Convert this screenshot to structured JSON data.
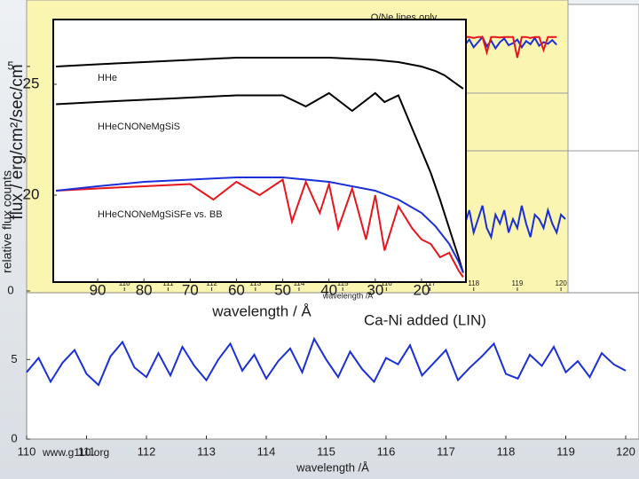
{
  "chart_data": [
    {
      "type": "line",
      "title": "Ca-Ni added  (LIN)",
      "xlabel": "wavelength /Å",
      "xlim": [
        110,
        120
      ],
      "xticks": [
        110,
        111,
        112,
        113,
        114,
        115,
        116,
        117,
        118,
        119,
        120
      ],
      "ylim": [
        0,
        9.2
      ],
      "yticks": [
        0,
        5
      ],
      "x": [
        110,
        110.2,
        110.4,
        110.6,
        110.8,
        111,
        111.2,
        111.4,
        111.6,
        111.8,
        112,
        112.2,
        112.4,
        112.6,
        112.8,
        113,
        113.2,
        113.4,
        113.6,
        113.8,
        114,
        114.2,
        114.4,
        114.6,
        114.8,
        115,
        115.2,
        115.4,
        115.6,
        115.8,
        116,
        116.2,
        116.4,
        116.6,
        116.8,
        117,
        117.2,
        117.4,
        117.6,
        117.8,
        118,
        118.2,
        118.4,
        118.6,
        118.8,
        119,
        119.2,
        119.4,
        119.6,
        119.8,
        120
      ],
      "series": [
        {
          "color": "#1a2fd8",
          "values": [
            4.2,
            5.1,
            3.6,
            4.8,
            5.6,
            4.1,
            3.4,
            5.2,
            6.1,
            4.5,
            3.9,
            5.4,
            4.0,
            5.8,
            4.6,
            3.7,
            5.0,
            6.0,
            4.3,
            5.3,
            3.8,
            4.9,
            5.7,
            4.2,
            6.3,
            5.0,
            3.9,
            5.5,
            4.4,
            3.6,
            5.1,
            4.7,
            5.9,
            4.0,
            4.8,
            5.6,
            3.7,
            4.5,
            5.2,
            6.0,
            4.1,
            3.8,
            5.3,
            4.6,
            5.8,
            4.2,
            4.9,
            3.9,
            5.4,
            4.7,
            4.3
          ]
        }
      ]
    },
    {
      "type": "line",
      "xlabel": "wavelength /Å",
      "ylabel": "relative flux counts",
      "xlim": [
        107.76,
        120.16
      ],
      "xticks": [
        110,
        111,
        112,
        113,
        114,
        115,
        116,
        117,
        118,
        119,
        120
      ],
      "ylim": [
        0,
        6.48
      ],
      "yticks": [
        0,
        5
      ],
      "x": [
        117.8,
        117.9,
        118,
        118.1,
        118.2,
        118.3,
        118.4,
        118.5,
        118.6,
        118.7,
        118.8,
        118.9,
        119,
        119.1,
        119.2,
        119.3,
        119.4,
        119.5,
        119.6,
        119.7,
        119.8,
        119.9,
        120,
        120.1
      ],
      "series": [
        {
          "color": "#1a2fd8",
          "values": [
            1.5,
            1.8,
            1.3,
            1.6,
            1.9,
            1.4,
            1.2,
            1.7,
            1.5,
            1.8,
            1.3,
            1.6,
            1.4,
            1.9,
            1.5,
            1.2,
            1.7,
            1.6,
            1.4,
            1.8,
            1.5,
            1.3,
            1.7,
            1.6
          ]
        }
      ]
    },
    {
      "type": "line",
      "title": "O/Ne lines only",
      "xlim": [
        107.76,
        120.16
      ],
      "ylim": [
        0,
        1.2
      ],
      "x": [
        117.8,
        117.9,
        118,
        118.1,
        118.2,
        118.3,
        118.4,
        118.5,
        118.6,
        118.7,
        118.8,
        118.9,
        119,
        119.1,
        119.2,
        119.3,
        119.4,
        119.5,
        119.6,
        119.7,
        119.8,
        119.9
      ],
      "series": [
        {
          "color": "#1a2fd8",
          "values": [
            0.85,
            0.95,
            0.8,
            0.9,
            1.0,
            0.82,
            0.93,
            0.78,
            0.9,
            0.97,
            0.84,
            0.88,
            0.95,
            0.8,
            0.92,
            0.86,
            0.98,
            0.83,
            0.9,
            0.87,
            0.94,
            0.85
          ]
        },
        {
          "color": "#e8151b",
          "values": [
            1.0,
            1.0,
            0.98,
            1.0,
            1.0,
            0.7,
            1.0,
            1.0,
            0.99,
            1.0,
            1.0,
            1.0,
            0.6,
            1.0,
            1.0,
            0.98,
            1.0,
            1.0,
            0.75,
            1.0,
            1.0,
            1.0
          ]
        }
      ]
    },
    {
      "type": "line",
      "xlabel": "wavelength / Å",
      "ylabel": "flux / erg/cm²/sec/cm",
      "xlim": [
        99.6,
        10.4
      ],
      "xticks": [
        90,
        80,
        70,
        60,
        50,
        40,
        30,
        20
      ],
      "ylim": [
        16.08,
        27.8
      ],
      "yticks": [
        20,
        25
      ],
      "series": [
        {
          "name": "HHe",
          "color": "#000000",
          "x": [
            99,
            90,
            80,
            70,
            60,
            50,
            40,
            30,
            25,
            20,
            17,
            15,
            13,
            11
          ],
          "values": [
            25.8,
            25.9,
            26.0,
            26.1,
            26.2,
            26.2,
            26.2,
            26.1,
            26.0,
            25.8,
            25.6,
            25.4,
            25.1,
            24.8
          ]
        },
        {
          "name": "HHeCNONeMgSiS",
          "color": "#000000",
          "x": [
            99,
            90,
            80,
            70,
            60,
            50,
            45,
            40,
            35,
            30,
            28,
            25,
            23,
            22,
            20,
            18,
            16,
            14,
            12,
            11
          ],
          "values": [
            24.1,
            24.2,
            24.3,
            24.4,
            24.5,
            24.5,
            24.0,
            24.6,
            23.8,
            24.6,
            24.2,
            24.5,
            23.5,
            23.0,
            22.0,
            21.0,
            19.8,
            18.5,
            17.2,
            16.5
          ]
        },
        {
          "name": "HHeCNONeMgSiSFe vs. BB",
          "color": "#e8151b",
          "x": [
            99,
            90,
            80,
            70,
            65,
            60,
            55,
            50,
            48,
            45,
            42,
            40,
            38,
            35,
            32,
            30,
            28,
            25,
            22,
            20,
            18,
            16,
            14,
            12,
            11
          ],
          "values": [
            20.2,
            20.3,
            20.4,
            20.5,
            19.8,
            20.6,
            20.0,
            20.7,
            18.8,
            20.6,
            19.2,
            20.5,
            18.5,
            20.3,
            18.0,
            20.0,
            17.5,
            19.5,
            18.5,
            18.0,
            17.8,
            17.2,
            17.4,
            16.6,
            16.3
          ]
        },
        {
          "color": "#1a2fd8",
          "x": [
            99,
            90,
            80,
            70,
            60,
            50,
            40,
            30,
            25,
            20,
            17,
            14,
            12,
            11
          ],
          "values": [
            20.2,
            20.4,
            20.6,
            20.7,
            20.8,
            20.8,
            20.6,
            20.2,
            19.8,
            19.2,
            18.6,
            17.8,
            17.0,
            16.5
          ]
        }
      ]
    }
  ],
  "watermark": "www.g110.org"
}
